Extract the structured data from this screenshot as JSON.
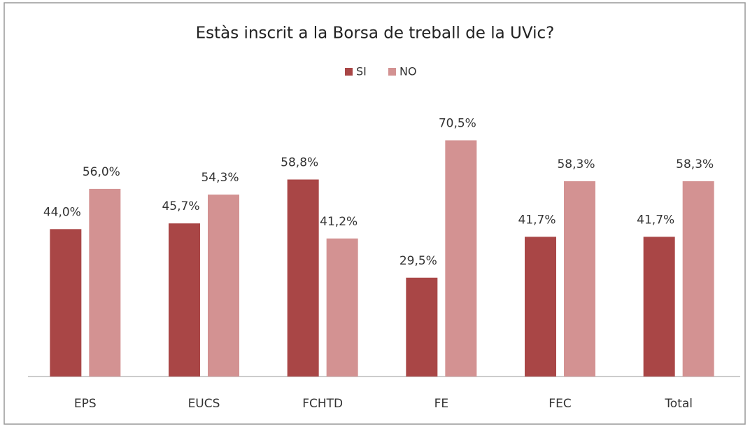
{
  "chart_data": {
    "type": "bar",
    "title": "Estàs inscrit a la Borsa de treball de la UVic?",
    "categories": [
      "EPS",
      "EUCS",
      "FCHTD",
      "FE",
      "FEC",
      "Total"
    ],
    "series": [
      {
        "name": "SI",
        "color": "#a94646",
        "values": [
          44.0,
          45.7,
          58.8,
          29.5,
          41.7,
          41.7
        ],
        "value_labels": [
          "44,0%",
          "45,7%",
          "58,8%",
          "29,5%",
          "41,7%",
          "41,7%"
        ]
      },
      {
        "name": "NO",
        "color": "#d39292",
        "values": [
          56.0,
          54.3,
          41.2,
          70.5,
          58.3,
          58.3
        ],
        "value_labels": [
          "56,0%",
          "54,3%",
          "41,2%",
          "70,5%",
          "58,3%",
          "58,3%"
        ]
      }
    ],
    "ylim": [
      0,
      80
    ],
    "legend": "top"
  }
}
